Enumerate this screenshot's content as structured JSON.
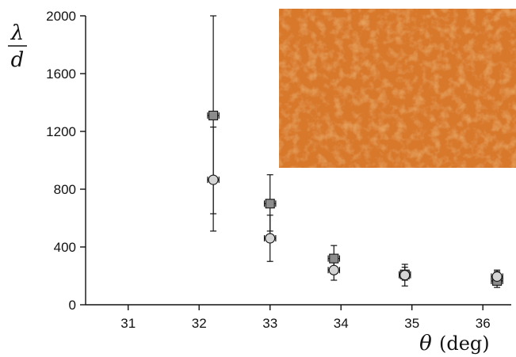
{
  "chart_data": {
    "type": "scatter",
    "title": "",
    "xlabel": {
      "symbol": "θ",
      "unit": "(deg)"
    },
    "ylabel": {
      "numerator": "λ",
      "denominator": "d"
    },
    "xlim": [
      30.4,
      36.4
    ],
    "ylim": [
      0,
      2000
    ],
    "x_ticks": [
      31,
      32,
      33,
      34,
      35,
      36
    ],
    "y_ticks": [
      0,
      400,
      800,
      1200,
      1600,
      2000
    ],
    "grid": false,
    "legend": "none",
    "inset": "orange textured surface micrograph (top-right)",
    "colors": {
      "square": "#8c8c8c",
      "circle": "#d4d4d4",
      "inset": "#d8782a"
    },
    "series": [
      {
        "marker": "square",
        "points": [
          {
            "x": 32.2,
            "y": 1310,
            "ylow": 630,
            "yhigh": 2000,
            "xerr": 0.08
          },
          {
            "x": 33.0,
            "y": 700,
            "ylow": 510,
            "yhigh": 900,
            "xerr": 0.08
          },
          {
            "x": 33.9,
            "y": 320,
            "ylow": 230,
            "yhigh": 410,
            "xerr": 0.08
          },
          {
            "x": 34.9,
            "y": 210,
            "ylow": 170,
            "yhigh": 280,
            "xerr": 0.08
          },
          {
            "x": 36.2,
            "y": 165,
            "ylow": 140,
            "yhigh": 240,
            "xerr": 0.08
          }
        ]
      },
      {
        "marker": "circle",
        "points": [
          {
            "x": 32.2,
            "y": 865,
            "ylow": 510,
            "yhigh": 1230,
            "xerr": 0.08
          },
          {
            "x": 33.0,
            "y": 460,
            "ylow": 300,
            "yhigh": 620,
            "xerr": 0.08
          },
          {
            "x": 33.9,
            "y": 240,
            "ylow": 170,
            "yhigh": 310,
            "xerr": 0.08
          },
          {
            "x": 34.9,
            "y": 205,
            "ylow": 130,
            "yhigh": 260,
            "xerr": 0.08
          },
          {
            "x": 36.2,
            "y": 195,
            "ylow": 120,
            "yhigh": 230,
            "xerr": 0.08
          }
        ]
      }
    ]
  }
}
